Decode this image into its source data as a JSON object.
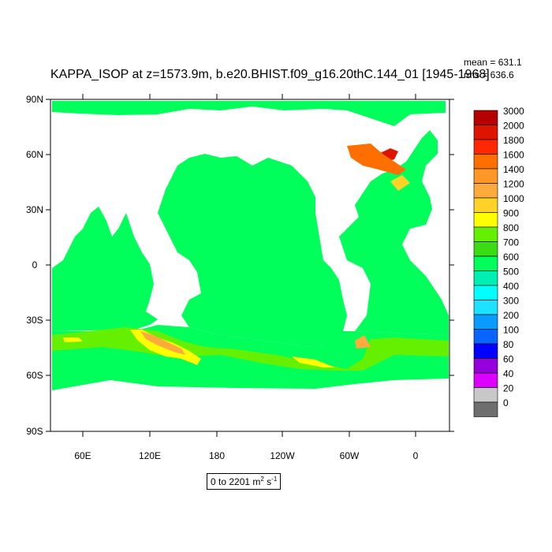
{
  "title": "KAPPA_ISOP at z=1573.9m, b.e20.BHIST.f09_g16.20thC.144_01 [1945-1968]",
  "stats": {
    "mean": "mean = 631.1",
    "rms": "rms = 636.6"
  },
  "axes": {
    "lat_labels": [
      "90N",
      "60N",
      "30N",
      "0",
      "30S",
      "60S",
      "90S"
    ],
    "lon_labels": [
      "60E",
      "120E",
      "180",
      "120W",
      "60W",
      "0"
    ]
  },
  "colorbar": {
    "levels": [
      "3000",
      "2000",
      "1800",
      "1600",
      "1400",
      "1200",
      "1000",
      "900",
      "800",
      "700",
      "600",
      "500",
      "400",
      "300",
      "200",
      "100",
      "80",
      "60",
      "40",
      "20",
      "0"
    ],
    "colors": [
      "#b40000",
      "#dc1400",
      "#ff2800",
      "#ff6e00",
      "#ff9628",
      "#ffaa3c",
      "#ffd228",
      "#ffff00",
      "#64f000",
      "#3cdc14",
      "#00ff5a",
      "#00f0b4",
      "#00ffff",
      "#1ee1ff",
      "#0a9bff",
      "#0a64ff",
      "#0000ff",
      "#9600dc",
      "#dc00ff",
      "#c8c8c8",
      "#6e6e6e"
    ]
  },
  "range_label": {
    "text": "0 to 2201 m",
    "unit_base": " s",
    "sup1": "2",
    "sup2": "-1"
  },
  "colors": {
    "ocean": "#00ff5a",
    "land": "#ffffff",
    "band_green": "#64f000",
    "band_yellow": "#ffff00",
    "band_orange": "#ffaa3c",
    "band_red": "#dc1400"
  }
}
